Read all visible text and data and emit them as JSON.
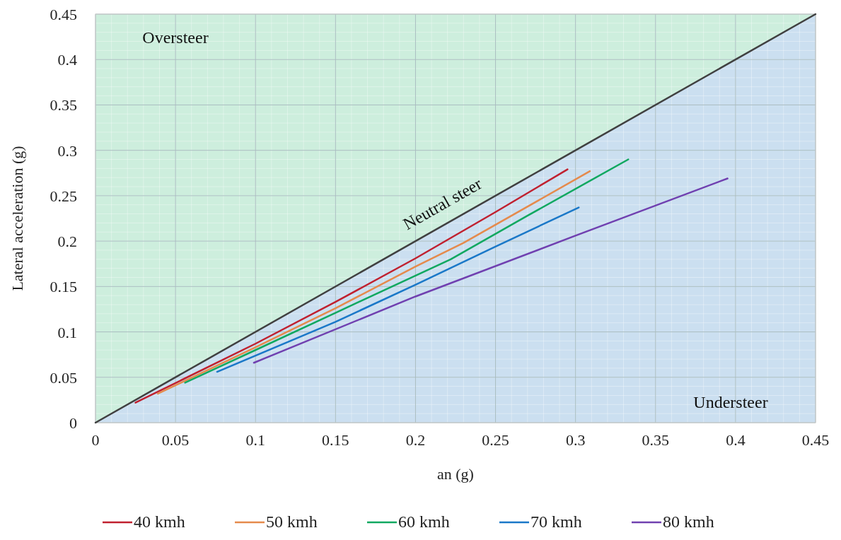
{
  "chart_data": {
    "type": "line",
    "xlabel": "an (g)",
    "ylabel": "Lateral acceleration (g)",
    "xlim": [
      0,
      0.45
    ],
    "ylim": [
      0,
      0.45
    ],
    "xticks": [
      0,
      0.05,
      0.1,
      0.15,
      0.2,
      0.25,
      0.3,
      0.35,
      0.4,
      0.45
    ],
    "yticks": [
      0,
      0.05,
      0.1,
      0.15,
      0.2,
      0.25,
      0.3,
      0.35,
      0.4,
      0.45
    ],
    "grid": true,
    "legend": "bottom",
    "line_style": "solid",
    "annotations": [
      "Oversteer",
      "Neutral steer",
      "Understeer"
    ],
    "series": [
      {
        "color": "#404040",
        "x": [
          0,
          0.45
        ],
        "values": [
          0,
          0.45
        ]
      },
      {
        "name": "40 kmh",
        "color": "#c0202f",
        "x": [
          0.025,
          0.1,
          0.15,
          0.2,
          0.25,
          0.295
        ],
        "values": [
          0.022,
          0.087,
          0.133,
          0.181,
          0.232,
          0.279
        ]
      },
      {
        "name": "50 kmh",
        "color": "#e58a4c",
        "x": [
          0.039,
          0.1,
          0.15,
          0.2,
          0.23,
          0.309
        ],
        "values": [
          0.032,
          0.083,
          0.126,
          0.172,
          0.198,
          0.277
        ]
      },
      {
        "name": "60 kmh",
        "color": "#10a860",
        "x": [
          0.056,
          0.1,
          0.15,
          0.222,
          0.27,
          0.333
        ],
        "values": [
          0.044,
          0.08,
          0.121,
          0.18,
          0.228,
          0.29
        ]
      },
      {
        "name": "70 kmh",
        "color": "#1a78c8",
        "x": [
          0.076,
          0.15,
          0.2,
          0.25,
          0.302
        ],
        "values": [
          0.056,
          0.111,
          0.152,
          0.194,
          0.237
        ]
      },
      {
        "name": "80 kmh",
        "color": "#7040b0",
        "x": [
          0.099,
          0.2,
          0.3,
          0.395
        ],
        "values": [
          0.066,
          0.139,
          0.206,
          0.269
        ]
      }
    ]
  }
}
